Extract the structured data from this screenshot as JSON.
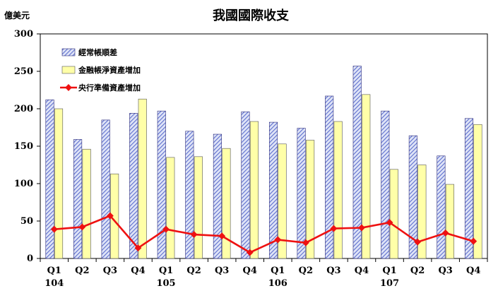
{
  "chart_data": {
    "type": "bar",
    "title": "我國國際收支",
    "unit_label": "億美元",
    "ylim": [
      0,
      300
    ],
    "yticks": [
      0,
      50,
      100,
      150,
      200,
      250,
      300
    ],
    "categories": [
      "Q1",
      "Q2",
      "Q3",
      "Q4",
      "Q1",
      "Q2",
      "Q3",
      "Q4",
      "Q1",
      "Q2",
      "Q3",
      "Q4",
      "Q1",
      "Q2",
      "Q3",
      "Q4"
    ],
    "year_labels": [
      {
        "label": "104",
        "index": 0
      },
      {
        "label": "105",
        "index": 4
      },
      {
        "label": "106",
        "index": 8
      },
      {
        "label": "107",
        "index": 12
      }
    ],
    "series": [
      {
        "name": "經常帳順差",
        "kind": "bar",
        "pattern": "hatch",
        "color": "#6b7fd6",
        "values": [
          212,
          159,
          185,
          194,
          197,
          170,
          166,
          196,
          182,
          174,
          217,
          257,
          197,
          164,
          137,
          187
        ]
      },
      {
        "name": "金融帳淨資產增加",
        "kind": "bar",
        "color": "#ffffa8",
        "values": [
          200,
          146,
          113,
          213,
          135,
          136,
          147,
          183,
          153,
          158,
          183,
          219,
          119,
          125,
          99,
          179
        ]
      },
      {
        "name": "央行準備資產增加",
        "kind": "line",
        "color": "#ee1111",
        "values": [
          39,
          42,
          57,
          14,
          39,
          32,
          30,
          8,
          25,
          21,
          40,
          41,
          48,
          22,
          34,
          23
        ]
      }
    ],
    "legend_position": "top-left",
    "grid": false
  }
}
